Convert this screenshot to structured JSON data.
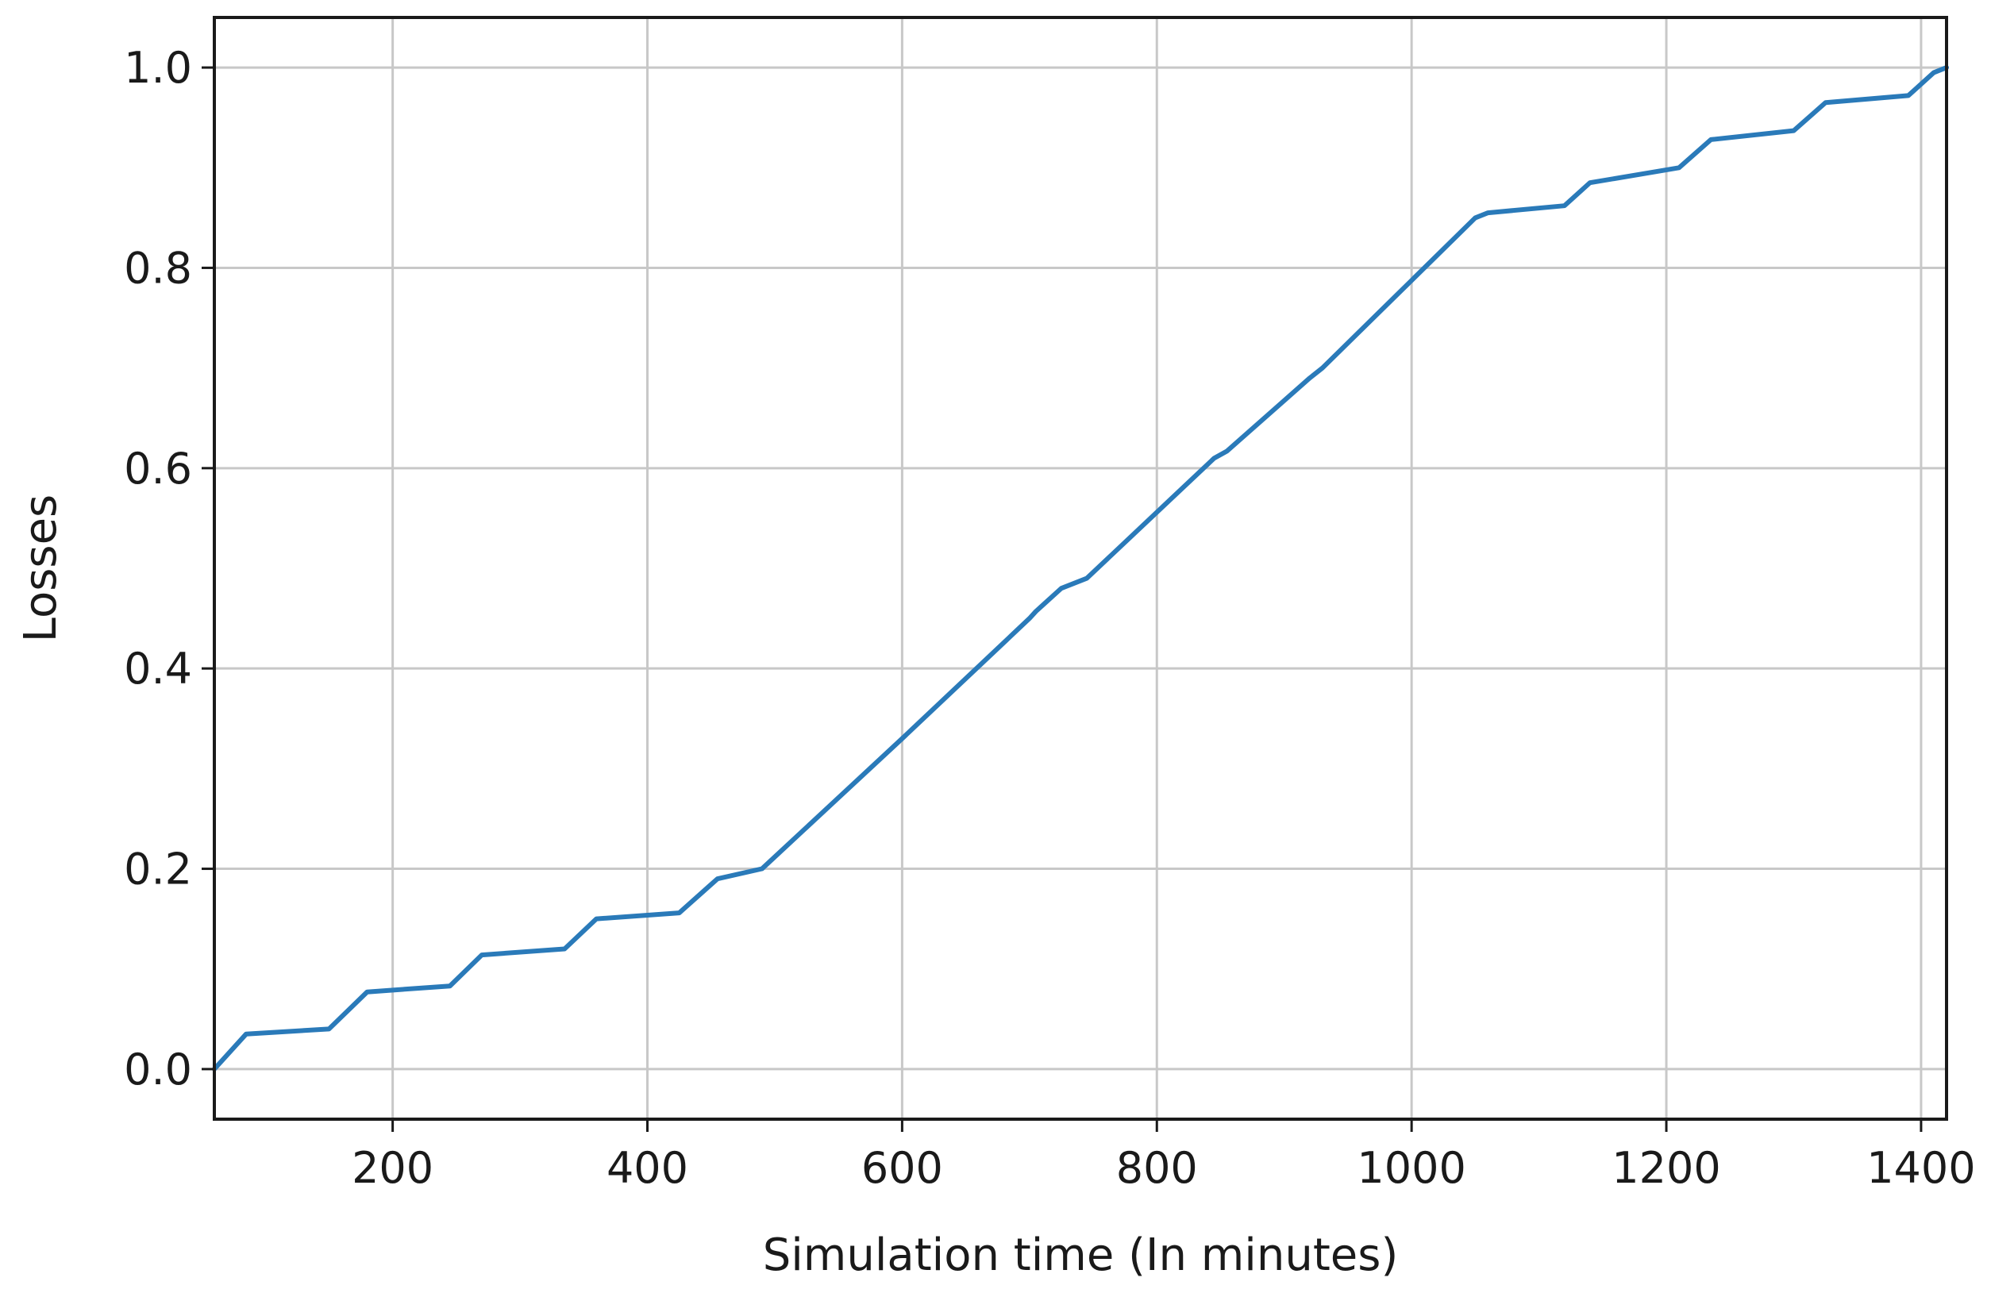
{
  "chart_data": {
    "type": "line",
    "xlabel": "Simulation time (In minutes)",
    "ylabel": "Losses",
    "xlim": [
      60,
      1420
    ],
    "ylim": [
      -0.05,
      1.05
    ],
    "xticks": [
      200,
      400,
      600,
      800,
      1000,
      1200,
      1400
    ],
    "xtick_labels": [
      "200",
      "400",
      "600",
      "800",
      "1000",
      "1200",
      "1400"
    ],
    "yticks": [
      0.0,
      0.2,
      0.4,
      0.6,
      0.8,
      1.0
    ],
    "ytick_labels": [
      "0.0",
      "0.2",
      "0.4",
      "0.6",
      "0.8",
      "1.0"
    ],
    "grid": true,
    "series": [
      {
        "color": "#2a7ab9",
        "x": [
          60,
          85,
          150,
          180,
          245,
          270,
          335,
          360,
          425,
          455,
          490,
          600,
          700,
          705,
          725,
          745,
          845,
          855,
          920,
          930,
          1050,
          1060,
          1120,
          1140,
          1210,
          1235,
          1300,
          1325,
          1390,
          1410,
          1420
        ],
        "y": [
          0.0,
          0.035,
          0.04,
          0.077,
          0.083,
          0.114,
          0.12,
          0.15,
          0.156,
          0.19,
          0.2,
          0.33,
          0.45,
          0.457,
          0.48,
          0.49,
          0.61,
          0.617,
          0.69,
          0.7,
          0.85,
          0.855,
          0.862,
          0.885,
          0.9,
          0.928,
          0.937,
          0.965,
          0.972,
          0.995,
          1.0
        ]
      }
    ]
  }
}
